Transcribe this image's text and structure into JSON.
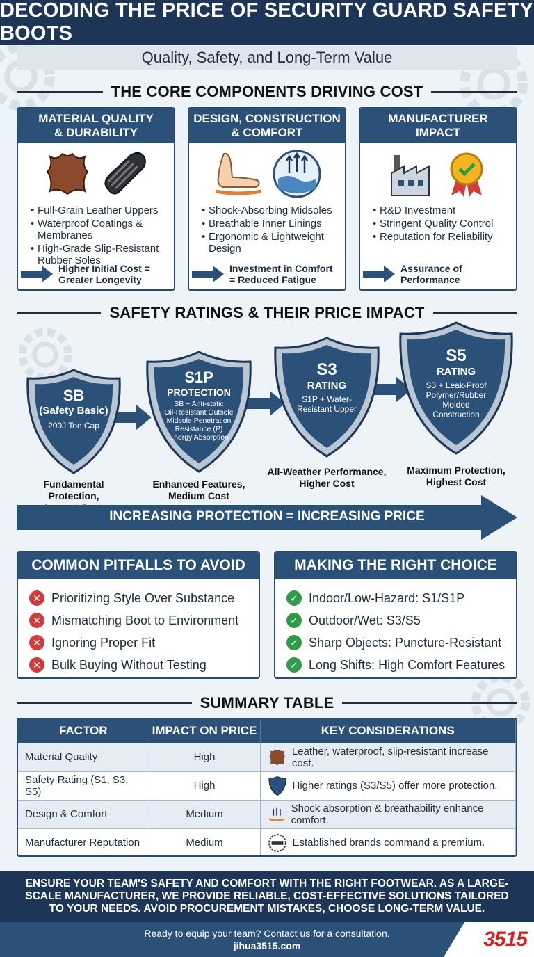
{
  "title": "DECODING THE PRICE OF SECURITY GUARD SAFETY BOOTS",
  "subtitle": "Quality, Safety, and Long-Term Value",
  "sections": {
    "core": "THE CORE COMPONENTS DRIVING COST",
    "ratings": "SAFETY RATINGS & THEIR PRICE IMPACT",
    "summary": "SUMMARY TABLE"
  },
  "cards": [
    {
      "title_line1": "MATERIAL QUALITY",
      "title_line2": "& DURABILITY",
      "bullets": [
        "Full-Grain Leather Uppers",
        "Waterproof Coatings & Membranes",
        "High-Grade Slip-Resistant Rubber Soles"
      ],
      "footer_line1": "Higher Initial Cost =",
      "footer_line2": "Greater Longevity",
      "icons": [
        "leather-hide-icon",
        "boot-sole-icon"
      ]
    },
    {
      "title_line1": "DESIGN, CONSTRUCTION",
      "title_line2": "& COMFORT",
      "bullets": [
        "Shock-Absorbing Midsoles",
        "Breathable Inner Linings",
        "Ergonomic & Lightweight Design"
      ],
      "footer_line1": "Investment in Comfort",
      "footer_line2": "= Reduced Fatigue",
      "icons": [
        "foot-cushion-icon",
        "breathable-membrane-icon"
      ]
    },
    {
      "title_line1": "MANUFACTURER",
      "title_line2": "IMPACT",
      "bullets": [
        "R&D Investment",
        "Stringent Quality Control",
        "Reputation for Reliability"
      ],
      "footer_line1": "Assurance of",
      "footer_line2": "Performance",
      "icons": [
        "factory-icon",
        "quality-badge-icon"
      ]
    }
  ],
  "ratings": [
    {
      "code": "SB",
      "name": "(Safety Basic)",
      "detail": "200J Toe Cap",
      "caption_line1": "Fundamental Protection,",
      "caption_line2": "Lowest Cost"
    },
    {
      "code": "S1P",
      "name": "PROTECTION",
      "detail_lines": [
        "SB + Anti-static",
        "Oil-Resistant Outsole",
        "Midsole Penetration",
        "Resistance (P)",
        "Energy Absorption"
      ],
      "caption_line1": "Enhanced Features,",
      "caption_line2": "Medium Cost"
    },
    {
      "code": "S3",
      "name": "RATING",
      "detail_lines": [
        "S1P + Water-",
        "Resistant Upper"
      ],
      "caption_line1": "All-Weather Performance,",
      "caption_line2": "Higher Cost"
    },
    {
      "code": "S5",
      "name": "RATING",
      "detail_lines": [
        "S3 + Leak-Proof",
        "Polymer/Rubber",
        "Molded",
        "Construction"
      ],
      "caption_line1": "Maximum Protection,",
      "caption_line2": "Highest Cost"
    }
  ],
  "price_arrow_label": "INCREASING PROTECTION = INCREASING PRICE",
  "pitfalls": {
    "title": "COMMON PITFALLS TO AVOID",
    "items": [
      "Prioritizing Style Over Substance",
      "Mismatching Boot to Environment",
      "Ignoring Proper Fit",
      "Bulk Buying Without Testing"
    ]
  },
  "choice": {
    "title": "MAKING THE RIGHT CHOICE",
    "items": [
      "Indoor/Low-Hazard: S1/S1P",
      "Outdoor/Wet: S3/S5",
      "Sharp Objects: Puncture-Resistant",
      "Long Shifts: High Comfort Features"
    ]
  },
  "table": {
    "headers": [
      "FACTOR",
      "IMPACT ON PRICE",
      "KEY CONSIDERATIONS"
    ],
    "rows": [
      {
        "factor": "Material Quality",
        "impact": "High",
        "key": "Leather, waterproof, slip-resistant increase cost.",
        "icon": "leather-hide-icon"
      },
      {
        "factor": "Safety Rating (S1, S3, S5)",
        "impact": "High",
        "key": "Higher ratings (S3/S5) offer more protection.",
        "icon": "shield-icon"
      },
      {
        "factor": "Design & Comfort",
        "impact": "Medium",
        "key": "Shock absorption & breathability enhance comfort.",
        "icon": "comfort-hand-icon"
      },
      {
        "factor": "Manufacturer Reputation",
        "impact": "Medium",
        "key": "Established brands command a premium.",
        "icon": "brand-seal-icon"
      }
    ]
  },
  "footer": {
    "message": "ENSURE YOUR TEAM'S SAFETY AND COMFORT WITH THE RIGHT FOOTWEAR. AS A LARGE-SCALE MANUFACTURER, WE PROVIDE RELIABLE, COST-EFFECTIVE SOLUTIONS TAILORED TO YOUR NEEDS. AVOID PROCUREMENT MISTAKES, CHOOSE LONG-TERM VALUE.",
    "cta": "Ready to equip your team? Contact us for a consultation.",
    "url": "jihua3515.com",
    "brand": "3515"
  },
  "colors": {
    "navy": "#1d3557",
    "steel": "#2c5179",
    "red": "#d23b3b",
    "green": "#2f9a48"
  }
}
